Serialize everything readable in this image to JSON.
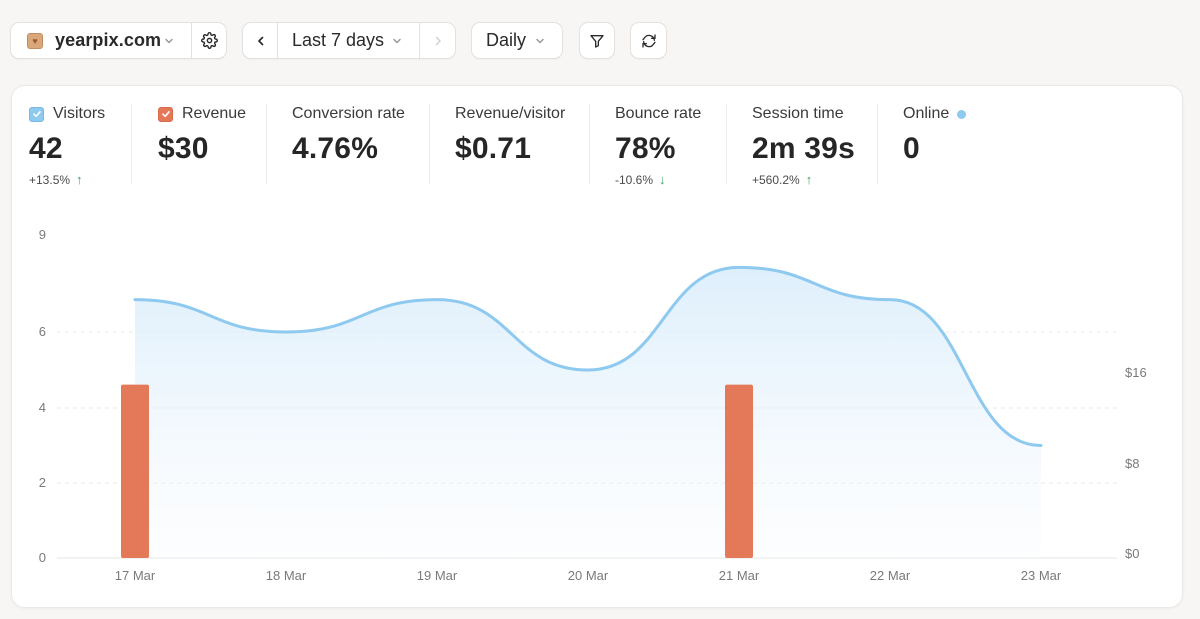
{
  "toolbar": {
    "site_name": "yearpix.com",
    "site_favicon": "favicon-icon",
    "date_range": "Last 7 days",
    "granularity": "Daily"
  },
  "metrics": {
    "visitors": {
      "label": "Visitors",
      "value": "42",
      "delta": "+13.5%",
      "checked": true,
      "color": "#8ec9ef"
    },
    "revenue": {
      "label": "Revenue",
      "value": "$30",
      "checked": true,
      "color": "#e4795a"
    },
    "conversion": {
      "label": "Conversion rate",
      "value": "4.76%"
    },
    "revenue_per_visitor": {
      "label": "Revenue/visitor",
      "value": "$0.71"
    },
    "bounce": {
      "label": "Bounce rate",
      "value": "78%",
      "delta": "-10.6%"
    },
    "session": {
      "label": "Session time",
      "value": "2m 39s",
      "delta": "+560.2%"
    },
    "online": {
      "label": "Online",
      "value": "0"
    }
  },
  "chart_data": {
    "type": "bar+area",
    "categories": [
      "17 Mar",
      "18 Mar",
      "19 Mar",
      "20 Mar",
      "21 Mar",
      "22 Mar",
      "23 Mar"
    ],
    "series": [
      {
        "name": "Visitors",
        "type": "area",
        "axis": "left",
        "color": "#8ec9ef",
        "values": [
          7,
          6,
          7,
          5,
          8,
          7,
          3
        ]
      },
      {
        "name": "Revenue",
        "type": "bar",
        "axis": "right",
        "color": "#e4795a",
        "values": [
          15,
          0,
          0,
          0,
          15,
          0,
          0
        ]
      }
    ],
    "y_left": {
      "ticks": [
        0,
        2,
        4,
        6,
        9
      ],
      "labels": [
        "0",
        "2",
        "4",
        "6",
        "9"
      ]
    },
    "y_right": {
      "ticks": [
        0,
        8,
        16
      ],
      "labels": [
        "$0",
        "$8",
        "$16"
      ]
    },
    "grid": true
  }
}
